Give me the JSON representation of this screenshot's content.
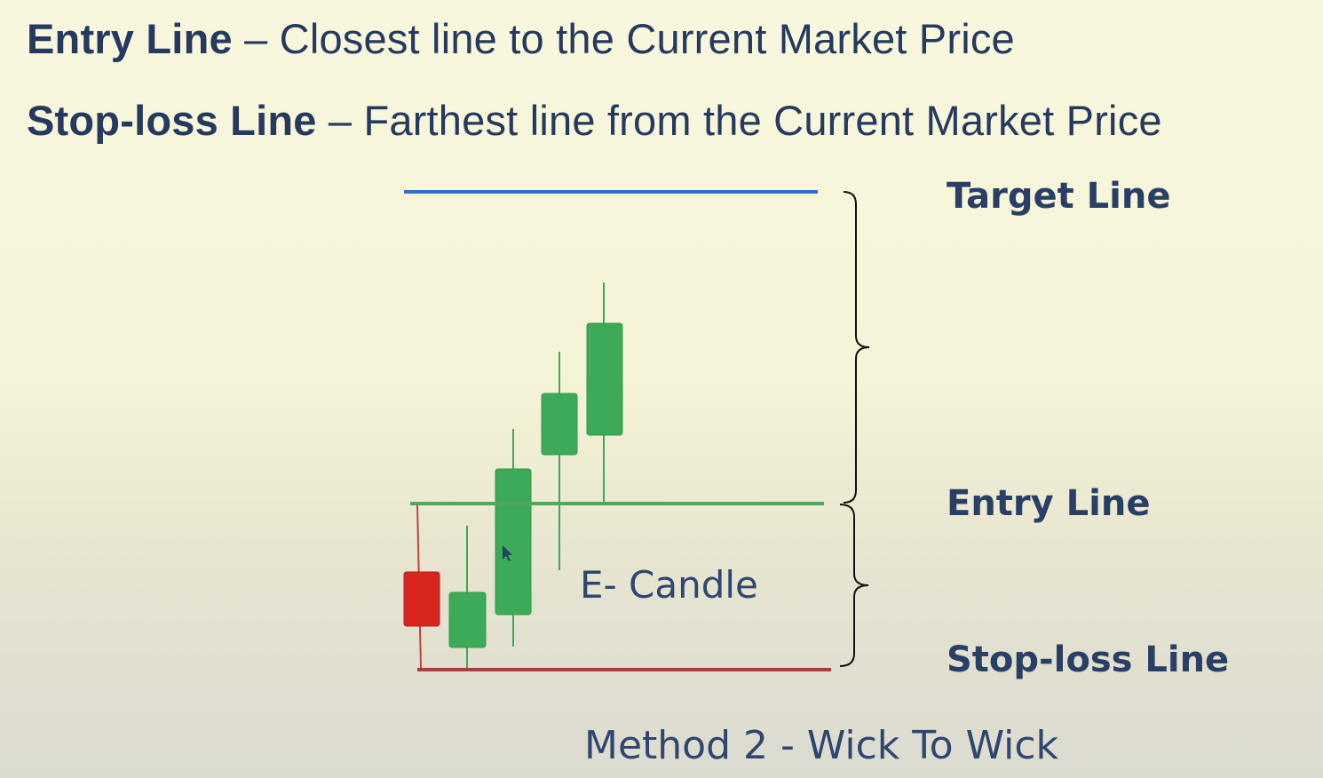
{
  "header": {
    "line1": {
      "term": "Entry Line",
      "definition": " – Closest line to the Current Market Price"
    },
    "line2": {
      "term": "Stop-loss Line",
      "definition": " – Farthest line from the Current Market Price"
    }
  },
  "diagram": {
    "labels": {
      "target": "Target Line",
      "entry": "Entry Line",
      "stoploss": "Stop-loss Line"
    },
    "candle_label": "E- Candle",
    "caption": "Method 2 - Wick To Wick"
  },
  "colors": {
    "text_dark_blue": "#253a5e",
    "target_line": "#2e6fbf",
    "entry_line": "#4fa85f",
    "stoploss_line": "#a83e40",
    "bull_candle": "#3daa58",
    "bear_candle": "#d8261e"
  }
}
